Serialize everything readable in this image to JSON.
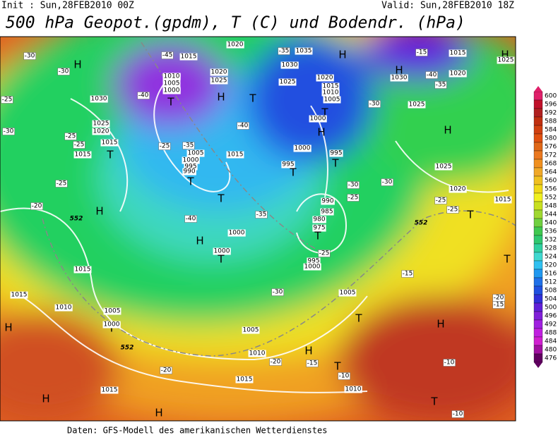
{
  "header": {
    "init": "Init : Sun,28FEB2010 00Z",
    "valid": "Valid: Sun,28FEB2010 18Z",
    "title": "500 hPa Geopot.(gpdm), T (C) und Bodendr. (hPa)"
  },
  "footer": "Daten: GFS-Modell des amerikanischen Wetterdienstes",
  "colorbar": {
    "labels": [
      600,
      596,
      592,
      588,
      584,
      580,
      576,
      572,
      568,
      564,
      560,
      556,
      552,
      548,
      544,
      540,
      536,
      532,
      528,
      524,
      520,
      516,
      512,
      508,
      504,
      500,
      496,
      492,
      488,
      484,
      480,
      476
    ]
  },
  "map": {
    "pressure_centers": [
      "H",
      "H",
      "H",
      "H",
      "H",
      "H",
      "H",
      "H",
      "H",
      "H",
      "H",
      "H",
      "H",
      "H",
      "T",
      "T",
      "T",
      "T",
      "T",
      "T",
      "T",
      "T",
      "T",
      "T",
      "T",
      "T",
      "T",
      "T",
      "T",
      "T"
    ],
    "isobar_labels": [
      "1015",
      "1020",
      "1035",
      "1030",
      "1010",
      "1005",
      "1000",
      "1020",
      "1025",
      "1030",
      "1025",
      "1020",
      "1015",
      "1015",
      "1025",
      "1020",
      "1015",
      "1010",
      "1005",
      "1000",
      "1005",
      "1000",
      "995",
      "990",
      "1015",
      "1000",
      "995",
      "995",
      "990",
      "985",
      "980",
      "975",
      "995",
      "1000",
      "1000",
      "1000",
      "1015",
      "1015",
      "1010",
      "1005",
      "1000",
      "1005",
      "1010",
      "1005",
      "1015",
      "1015",
      "1010",
      "1025",
      "1030",
      "1020",
      "1015",
      "1025",
      "1025",
      "1020",
      "1015"
    ],
    "temperature_labels": [
      "-30",
      "-30",
      "-45",
      "-40",
      "-25",
      "-30",
      "-25",
      "-25",
      "-25",
      "-35",
      "-40",
      "-35",
      "-15",
      "-40",
      "-35",
      "-30",
      "-25",
      "-20",
      "-35",
      "-40",
      "-30",
      "-30",
      "-25",
      "-25",
      "-25",
      "-15",
      "-20",
      "-15",
      "-30",
      "-20",
      "-20",
      "-15",
      "-10",
      "-10",
      "-10",
      "-25"
    ],
    "height_labels": [
      "552",
      "552",
      "552"
    ]
  }
}
